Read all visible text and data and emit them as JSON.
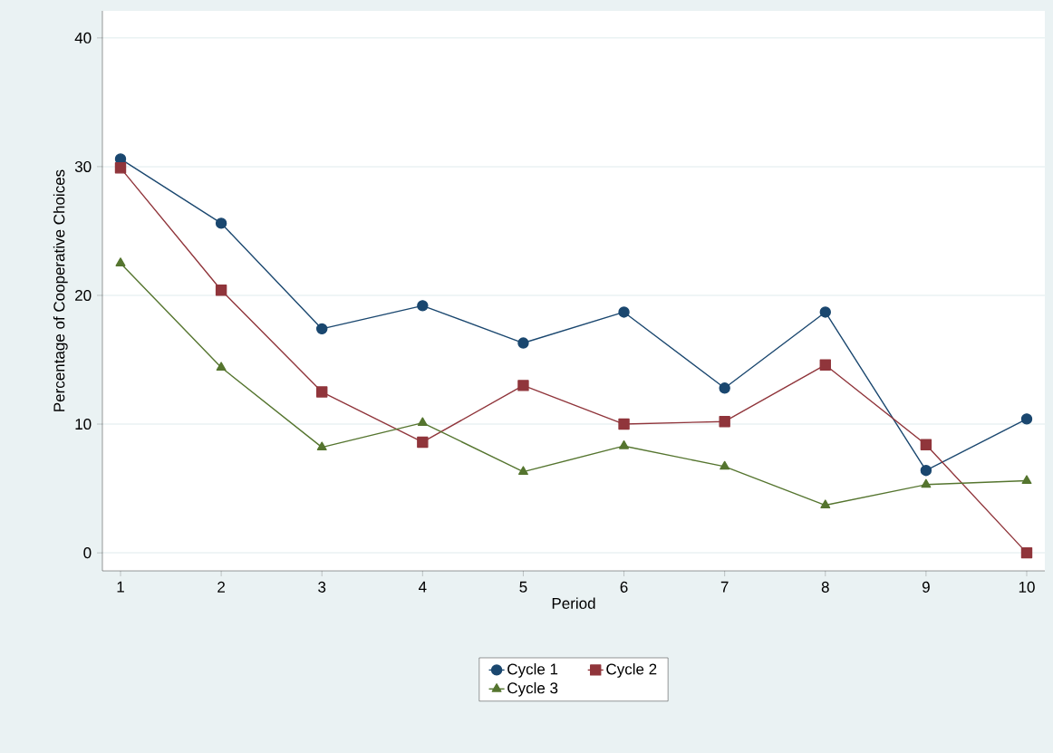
{
  "chart_data": {
    "type": "line",
    "xlabel": "Period",
    "ylabel": "Percentage of Cooperative Choices",
    "x": [
      1,
      2,
      3,
      4,
      5,
      6,
      7,
      8,
      9,
      10
    ],
    "series": [
      {
        "name": "Cycle 1",
        "color": "#1a476f",
        "marker": "circle",
        "values": [
          30.6,
          25.6,
          17.4,
          19.2,
          16.3,
          18.7,
          12.8,
          18.7,
          6.4,
          10.4
        ]
      },
      {
        "name": "Cycle 2",
        "color": "#90353b",
        "marker": "square",
        "values": [
          29.9,
          20.4,
          12.5,
          8.6,
          13.0,
          10.0,
          10.2,
          14.6,
          8.4,
          0
        ]
      },
      {
        "name": "Cycle 3",
        "color": "#55752f",
        "marker": "triangle",
        "values": [
          22.5,
          14.4,
          8.2,
          10.1,
          6.3,
          8.3,
          6.7,
          3.7,
          5.3,
          5.6
        ]
      }
    ],
    "xlim": [
      0.82,
      10.18
    ],
    "ylim": [
      -1.4,
      42.1
    ],
    "xticks": [
      1,
      2,
      3,
      4,
      5,
      6,
      7,
      8,
      9,
      10
    ],
    "yticks": [
      0,
      10,
      20,
      30,
      40
    ],
    "grid": "y",
    "legend": "bottom",
    "line_style": "solid"
  }
}
